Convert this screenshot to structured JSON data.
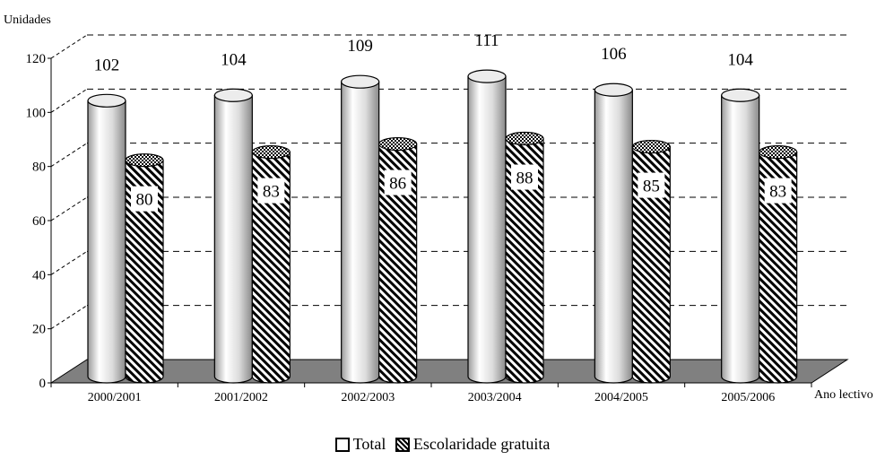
{
  "chart_data": {
    "type": "bar",
    "ylabel": "Unidades",
    "xlabel": "Ano lectivo",
    "ylim": [
      0,
      120
    ],
    "yticks": [
      "0",
      "20",
      "40",
      "60",
      "80",
      "100",
      "120"
    ],
    "categories": [
      "2000/2001",
      "2001/2002",
      "2002/2003",
      "2003/2004",
      "2004/2005",
      "2005/2006"
    ],
    "series": [
      {
        "name": "Total",
        "values": [
          102,
          104,
          109,
          111,
          106,
          104
        ],
        "value_labels": [
          "102",
          "104",
          "109",
          "111",
          "106",
          "104"
        ]
      },
      {
        "name": "Escolaridade gratuita",
        "values": [
          80,
          83,
          86,
          88,
          85,
          83
        ],
        "value_labels": [
          "80",
          "83",
          "86",
          "88",
          "85",
          "83"
        ]
      }
    ],
    "grid": true,
    "legend": "bottom",
    "style": "3d-cylinder"
  },
  "legend": {
    "total_label": "Total",
    "free_label": "Escolaridade gratuita"
  }
}
